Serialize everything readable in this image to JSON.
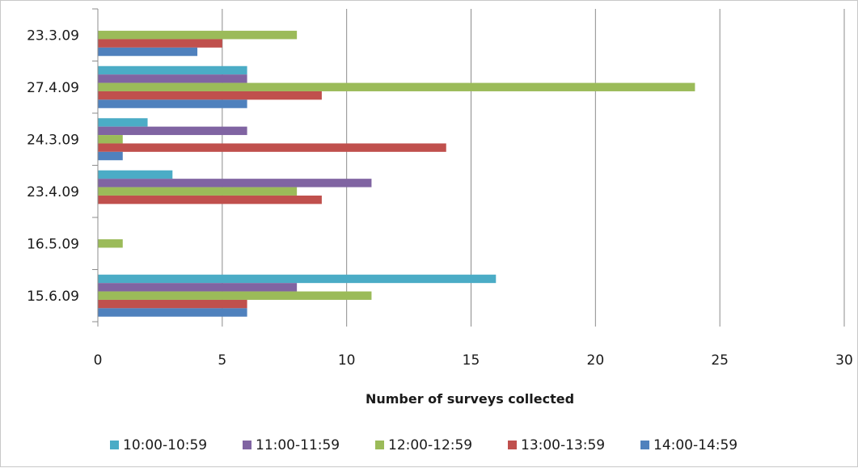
{
  "chart_data": {
    "type": "bar",
    "orientation": "horizontal",
    "title": "",
    "xlabel": "Number of surveys collected",
    "ylabel": "",
    "xlim": [
      0,
      30
    ],
    "x_ticks": [
      "0",
      "5",
      "10",
      "15",
      "20",
      "25",
      "30"
    ],
    "categories": [
      "23.3.09",
      "27.4.09",
      "24.3.09",
      "23.4.09",
      "16.5.09",
      "15.6.09"
    ],
    "grid": "vertical",
    "legend_position": "bottom",
    "series": [
      {
        "name": "10:00-10:59",
        "color": "#4bacc6",
        "values": [
          0,
          6,
          2,
          3,
          0,
          16
        ]
      },
      {
        "name": "11:00-11:59",
        "color": "#8064a2",
        "values": [
          0,
          6,
          6,
          11,
          0,
          8
        ]
      },
      {
        "name": "12:00-12:59",
        "color": "#9bbb59",
        "values": [
          8,
          24,
          1,
          8,
          1,
          11
        ]
      },
      {
        "name": "13:00-13:59",
        "color": "#c0504d",
        "values": [
          5,
          9,
          14,
          9,
          0,
          6
        ]
      },
      {
        "name": "14:00-14:59",
        "color": "#4f81bd",
        "values": [
          4,
          6,
          1,
          0,
          0,
          6
        ]
      }
    ]
  }
}
